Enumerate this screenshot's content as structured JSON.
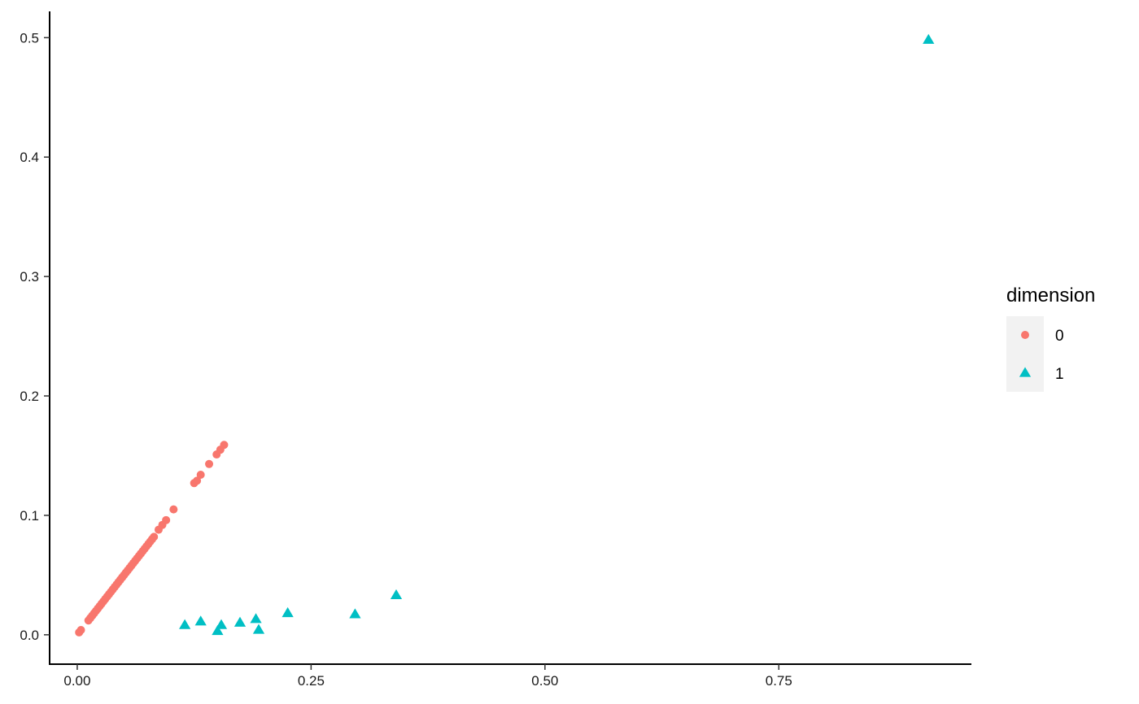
{
  "chart_data": {
    "type": "scatter",
    "xlim": [
      -0.0295,
      0.955
    ],
    "ylim": [
      -0.0246,
      0.522
    ],
    "x_ticks": [
      0.0,
      0.25,
      0.5,
      0.75
    ],
    "x_tick_labels": [
      "0.00",
      "0.25",
      "0.50",
      "0.75"
    ],
    "y_ticks": [
      0.0,
      0.1,
      0.2,
      0.3,
      0.4,
      0.5
    ],
    "y_tick_labels": [
      "0.0",
      "0.1",
      "0.2",
      "0.3",
      "0.4",
      "0.5"
    ],
    "grid": false,
    "legend": {
      "title": "dimension",
      "position": "right",
      "entries": [
        "0",
        "1"
      ]
    },
    "colors": {
      "0": "#F8766D",
      "1": "#00BFC4",
      "axis": "#000000",
      "legend_key_bg": "#F2F2F2"
    },
    "series": [
      {
        "name": "0",
        "marker": "circle",
        "points": [
          [
            0.002,
            0.002
          ],
          [
            0.004,
            0.004
          ],
          [
            0.012,
            0.012
          ],
          [
            0.014,
            0.014
          ],
          [
            0.016,
            0.016
          ],
          [
            0.018,
            0.018
          ],
          [
            0.02,
            0.02
          ],
          [
            0.022,
            0.022
          ],
          [
            0.024,
            0.024
          ],
          [
            0.026,
            0.026
          ],
          [
            0.028,
            0.028
          ],
          [
            0.03,
            0.03
          ],
          [
            0.032,
            0.032
          ],
          [
            0.034,
            0.034
          ],
          [
            0.036,
            0.036
          ],
          [
            0.038,
            0.038
          ],
          [
            0.04,
            0.04
          ],
          [
            0.042,
            0.042
          ],
          [
            0.044,
            0.044
          ],
          [
            0.046,
            0.046
          ],
          [
            0.048,
            0.048
          ],
          [
            0.05,
            0.05
          ],
          [
            0.052,
            0.052
          ],
          [
            0.054,
            0.054
          ],
          [
            0.056,
            0.056
          ],
          [
            0.058,
            0.058
          ],
          [
            0.06,
            0.06
          ],
          [
            0.062,
            0.062
          ],
          [
            0.064,
            0.064
          ],
          [
            0.066,
            0.066
          ],
          [
            0.068,
            0.068
          ],
          [
            0.07,
            0.07
          ],
          [
            0.072,
            0.072
          ],
          [
            0.074,
            0.074
          ],
          [
            0.076,
            0.076
          ],
          [
            0.078,
            0.078
          ],
          [
            0.08,
            0.08
          ],
          [
            0.082,
            0.082
          ],
          [
            0.087,
            0.088
          ],
          [
            0.091,
            0.092
          ],
          [
            0.095,
            0.096
          ],
          [
            0.103,
            0.105
          ],
          [
            0.125,
            0.127
          ],
          [
            0.128,
            0.129
          ],
          [
            0.132,
            0.134
          ],
          [
            0.141,
            0.143
          ],
          [
            0.149,
            0.151
          ],
          [
            0.153,
            0.155
          ],
          [
            0.157,
            0.159
          ]
        ]
      },
      {
        "name": "1",
        "marker": "triangle",
        "points": [
          [
            0.115,
            0.008
          ],
          [
            0.132,
            0.011
          ],
          [
            0.15,
            0.003
          ],
          [
            0.154,
            0.008
          ],
          [
            0.174,
            0.01
          ],
          [
            0.191,
            0.013
          ],
          [
            0.194,
            0.004
          ],
          [
            0.225,
            0.018
          ],
          [
            0.297,
            0.017
          ],
          [
            0.341,
            0.033
          ],
          [
            0.91,
            0.498
          ]
        ]
      }
    ]
  }
}
